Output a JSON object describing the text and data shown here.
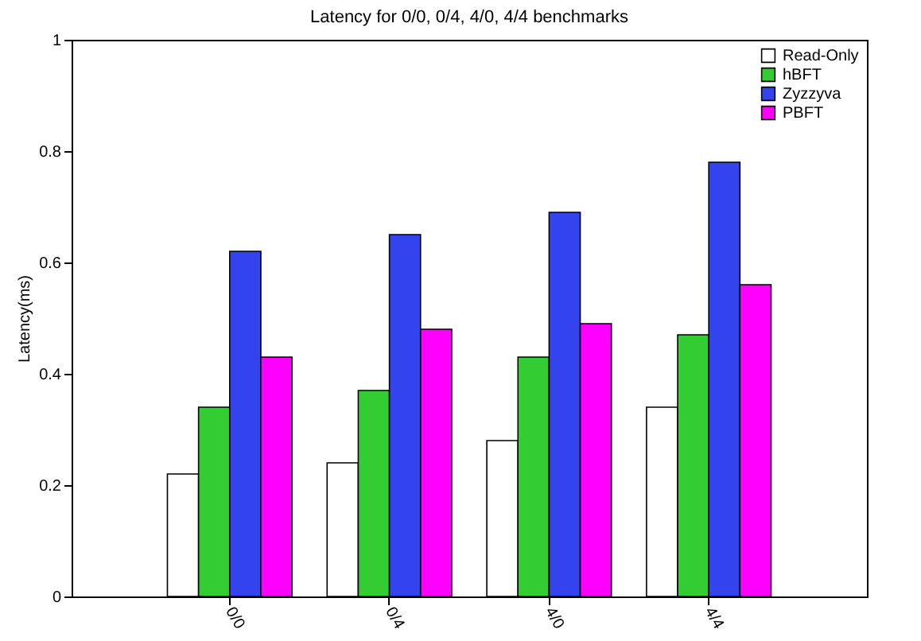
{
  "chart_data": {
    "type": "bar",
    "title": "Latency for 0/0, 0/4, 4/0, 4/4 benchmarks",
    "ylabel": "Latency(ms)",
    "categories": [
      "0/0",
      "0/4",
      "4/0",
      "4/4"
    ],
    "series": [
      {
        "name": "Read-Only",
        "color": "#ffffff",
        "values": [
          0.22,
          0.24,
          0.28,
          0.34
        ]
      },
      {
        "name": "hBFT",
        "color": "#33cc33",
        "values": [
          0.34,
          0.37,
          0.43,
          0.47
        ]
      },
      {
        "name": "Zyzzyva",
        "color": "#3344ee",
        "values": [
          0.62,
          0.65,
          0.69,
          0.78
        ]
      },
      {
        "name": "PBFT",
        "color": "#ff00ff",
        "values": [
          0.43,
          0.48,
          0.49,
          0.56
        ]
      }
    ],
    "ylim": [
      0,
      1
    ],
    "yticks": [
      0,
      0.2,
      0.4,
      0.6,
      0.8,
      1
    ],
    "legend": "top right"
  }
}
